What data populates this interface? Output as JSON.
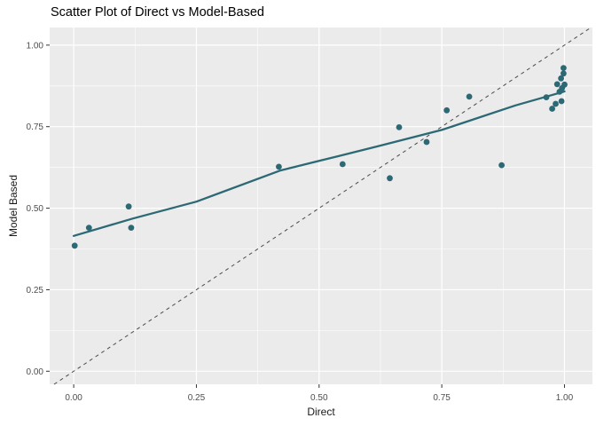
{
  "chart_data": {
    "type": "scatter",
    "title": "Scatter Plot of Direct vs Model-Based",
    "xlabel": "Direct",
    "ylabel": "Model Based",
    "x_ticks": {
      "values": [
        0,
        0.25,
        0.5,
        0.75,
        1.0
      ],
      "labels": [
        "0.00",
        "0.25",
        "0.50",
        "0.75",
        "1.00"
      ]
    },
    "y_ticks": {
      "values": [
        0,
        0.25,
        0.5,
        0.75,
        1.0
      ],
      "labels": [
        "0.00",
        "0.25",
        "0.50",
        "0.75",
        "1.00"
      ]
    },
    "xlim": [
      -0.049,
      1.057
    ],
    "ylim": [
      -0.04,
      1.054
    ],
    "grid": {
      "major": true,
      "minor": true
    },
    "legend": "none",
    "points": [
      [
        0.002,
        0.385
      ],
      [
        0.031,
        0.44
      ],
      [
        0.112,
        0.505
      ],
      [
        0.117,
        0.44
      ],
      [
        0.418,
        0.627
      ],
      [
        0.548,
        0.635
      ],
      [
        0.644,
        0.592
      ],
      [
        0.663,
        0.748
      ],
      [
        0.719,
        0.703
      ],
      [
        0.76,
        0.8
      ],
      [
        0.806,
        0.842
      ],
      [
        0.872,
        0.632
      ],
      [
        0.998,
        0.93
      ],
      [
        0.998,
        0.913
      ],
      [
        0.993,
        0.898
      ],
      [
        0.985,
        0.88
      ],
      [
        1.0,
        0.879
      ],
      [
        0.995,
        0.868
      ],
      [
        0.99,
        0.857
      ],
      [
        0.963,
        0.84
      ],
      [
        0.994,
        0.828
      ],
      [
        0.982,
        0.82
      ],
      [
        0.975,
        0.805
      ]
    ],
    "trend_line": {
      "type": "smooth",
      "points": [
        [
          0.0,
          0.415
        ],
        [
          0.12,
          0.468
        ],
        [
          0.25,
          0.52
        ],
        [
          0.42,
          0.615
        ],
        [
          0.5,
          0.645
        ],
        [
          0.62,
          0.69
        ],
        [
          0.75,
          0.74
        ],
        [
          0.9,
          0.815
        ],
        [
          1.0,
          0.858
        ]
      ]
    },
    "reference_line": {
      "type": "identity",
      "slope": 1,
      "intercept": 0,
      "style": "dashed"
    },
    "colors": {
      "point": "#2d6975",
      "trend": "#2d6975",
      "panel": "#ebebeb",
      "grid": "#ffffff",
      "identity": "#4a4a4a",
      "tick_text": "#4d4d4d",
      "tick_mark": "#333333",
      "title_text": "#000000",
      "background": "#ffffff"
    }
  }
}
